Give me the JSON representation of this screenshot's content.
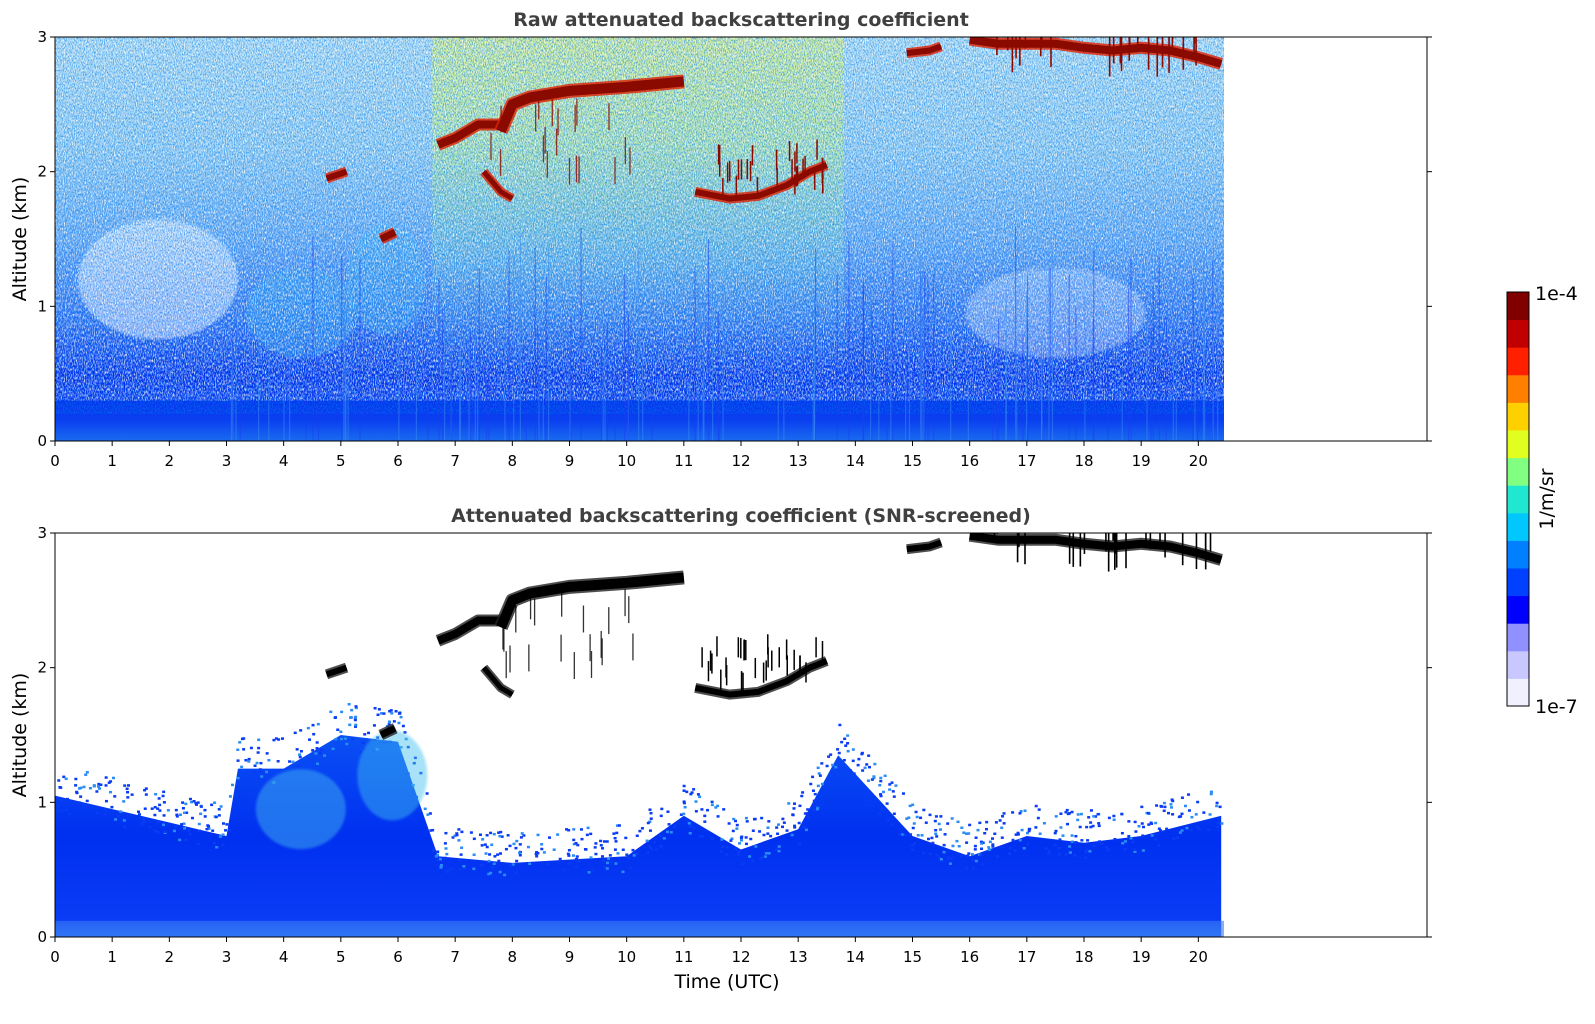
{
  "chart_data": [
    {
      "type": "heatmap",
      "title": "Raw attenuated backscattering coefficient",
      "xlabel": "",
      "ylabel": "Altitude (km)",
      "xlim": [
        0,
        24
      ],
      "ylim": [
        0,
        3
      ],
      "x_ticks": [
        "0",
        "1",
        "2",
        "3",
        "4",
        "5",
        "6",
        "7",
        "8",
        "9",
        "10",
        "11",
        "12",
        "13",
        "14",
        "15",
        "16",
        "17",
        "18",
        "19",
        "20"
      ],
      "y_ticks": [
        "0",
        "1",
        "2",
        "3"
      ],
      "data_end_time": 20.45,
      "features": [
        {
          "t0": 6.7,
          "t1": 11.0,
          "alt": 2.45,
          "note": "cloud layer rising from 2.2 to 2.65 km"
        },
        {
          "t0": 11.3,
          "t1": 13.5,
          "alt": 1.9,
          "note": "cloud layer 1.8-2.0 km"
        },
        {
          "t0": 16.0,
          "t1": 20.4,
          "alt": 2.95,
          "note": "cloud near 3 km"
        }
      ]
    },
    {
      "type": "heatmap",
      "title": "Attenuated backscattering coefficient (SNR-screened)",
      "xlabel": "Time (UTC)",
      "ylabel": "Altitude (km)",
      "xlim": [
        0,
        24
      ],
      "ylim": [
        0,
        3
      ],
      "x_ticks": [
        "0",
        "1",
        "2",
        "3",
        "4",
        "5",
        "6",
        "7",
        "8",
        "9",
        "10",
        "11",
        "12",
        "13",
        "14",
        "15",
        "16",
        "17",
        "18",
        "19",
        "20"
      ],
      "y_ticks": [
        "0",
        "1",
        "2",
        "3"
      ],
      "data_end_time": 20.45,
      "boundary_layer_top": [
        [
          0,
          1.05
        ],
        [
          1,
          0.95
        ],
        [
          2,
          0.85
        ],
        [
          3,
          0.75
        ],
        [
          3.2,
          1.25
        ],
        [
          4,
          1.25
        ],
        [
          5,
          1.5
        ],
        [
          6,
          1.45
        ],
        [
          6.7,
          0.6
        ],
        [
          8,
          0.55
        ],
        [
          10,
          0.6
        ],
        [
          11,
          0.9
        ],
        [
          12,
          0.65
        ],
        [
          13,
          0.8
        ],
        [
          13.7,
          1.35
        ],
        [
          15,
          0.75
        ],
        [
          16,
          0.6
        ],
        [
          17,
          0.75
        ],
        [
          18,
          0.7
        ],
        [
          19,
          0.75
        ],
        [
          20.4,
          0.9
        ]
      ]
    }
  ],
  "colorbar": {
    "label": "1/m/sr",
    "max_label": "1e-4",
    "min_label": "1e-7",
    "scale": "log",
    "colors": [
      "#f0f0ff",
      "#c8c8ff",
      "#9090ff",
      "#0000ff",
      "#0040ff",
      "#0080ff",
      "#00c8ff",
      "#20e8d0",
      "#80ff80",
      "#e0ff20",
      "#ffd000",
      "#ff8000",
      "#ff2000",
      "#c00000",
      "#800000"
    ]
  }
}
